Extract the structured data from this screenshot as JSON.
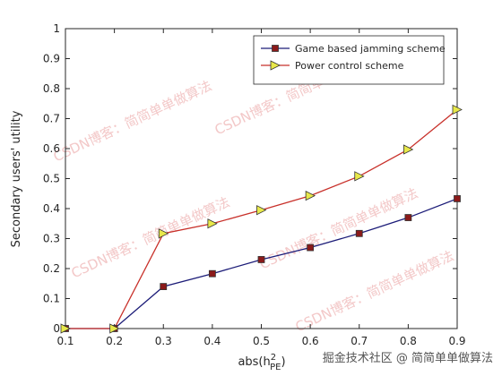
{
  "chart_data": {
    "type": "line",
    "xlabel": {
      "base": "abs(h",
      "sup": "2",
      "sub": "PE",
      "close": ")"
    },
    "ylabel": "Secondary users' utility",
    "x": [
      0.1,
      0.2,
      0.3,
      0.4,
      0.5,
      0.6,
      0.7,
      0.8,
      0.9
    ],
    "series": [
      {
        "name": "Game based jamming scheme",
        "color": "#1c1c78",
        "marker": "square",
        "marker_color": "#8b1a1a",
        "values": [
          0,
          0,
          0.14,
          0.183,
          0.23,
          0.27,
          0.317,
          0.37,
          0.433
        ]
      },
      {
        "name": "Power control scheme",
        "color": "#c8302a",
        "marker": "triangle-right",
        "marker_color": "#e8e84a",
        "values": [
          0,
          0,
          0.317,
          0.35,
          0.395,
          0.443,
          0.508,
          0.597,
          0.73
        ]
      }
    ],
    "xlim": [
      0.1,
      0.9
    ],
    "xticks": [
      0.1,
      0.2,
      0.3,
      0.4,
      0.5,
      0.6,
      0.7,
      0.8,
      0.9
    ],
    "ylim": [
      0,
      1
    ],
    "yticks": [
      0,
      0.1,
      0.2,
      0.3,
      0.4,
      0.5,
      0.6,
      0.7,
      0.8,
      0.9,
      1
    ],
    "legend": "northeast",
    "watermark": "CSDN博客：简简单单做算法",
    "footer_watermark": "掘金技术社区 @ 简简单单做算法"
  }
}
